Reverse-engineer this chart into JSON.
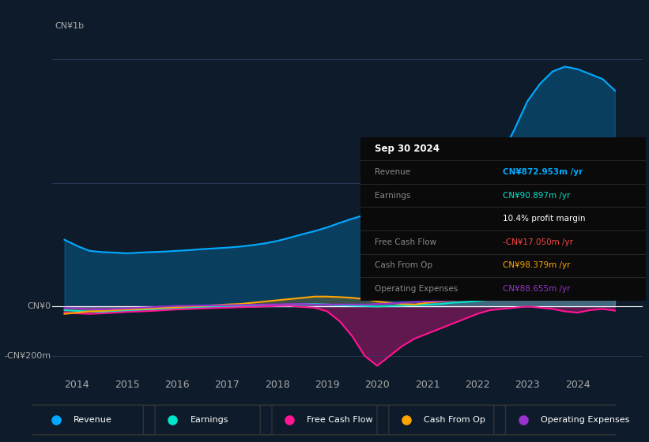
{
  "bg_color": "#0d1b2a",
  "plot_bg_color": "#0d1b2a",
  "grid_color": "#1e3050",
  "title_label": "CN¥1b",
  "y_labels": [
    "CN¥1b",
    "CN¥0",
    "-CN¥200m"
  ],
  "ylim": [
    -280,
    1150
  ],
  "xlim": [
    2013.5,
    2025.3
  ],
  "xticks": [
    2014,
    2015,
    2016,
    2017,
    2018,
    2019,
    2020,
    2021,
    2022,
    2023,
    2024
  ],
  "revenue_color": "#00aaff",
  "earnings_color": "#00e5cc",
  "fcf_color": "#ff1493",
  "cashfromop_color": "#ffa500",
  "opex_color": "#9932cc",
  "info_box": {
    "date": "Sep 30 2024",
    "revenue_val": "CN¥872.953m",
    "earnings_val": "CN¥90.897m",
    "profit_margin": "10.4% profit margin",
    "fcf_val": "-CN¥17.050m",
    "cashfromop_val": "CN¥98.379m",
    "opex_val": "CN¥88.655m"
  },
  "legend": [
    {
      "label": "Revenue",
      "color": "#00aaff"
    },
    {
      "label": "Earnings",
      "color": "#00e5cc"
    },
    {
      "label": "Free Cash Flow",
      "color": "#ff1493"
    },
    {
      "label": "Cash From Op",
      "color": "#ffa500"
    },
    {
      "label": "Operating Expenses",
      "color": "#9932cc"
    }
  ],
  "years": [
    2013.75,
    2014.0,
    2014.25,
    2014.5,
    2014.75,
    2015.0,
    2015.25,
    2015.5,
    2015.75,
    2016.0,
    2016.25,
    2016.5,
    2016.75,
    2017.0,
    2017.25,
    2017.5,
    2017.75,
    2018.0,
    2018.25,
    2018.5,
    2018.75,
    2019.0,
    2019.25,
    2019.5,
    2019.75,
    2020.0,
    2020.25,
    2020.5,
    2020.75,
    2021.0,
    2021.25,
    2021.5,
    2021.75,
    2022.0,
    2022.25,
    2022.5,
    2022.75,
    2023.0,
    2023.25,
    2023.5,
    2023.75,
    2024.0,
    2024.25,
    2024.5,
    2024.75
  ],
  "revenue": [
    270,
    245,
    225,
    220,
    218,
    215,
    218,
    220,
    222,
    225,
    228,
    232,
    235,
    238,
    242,
    248,
    255,
    265,
    278,
    292,
    305,
    320,
    338,
    355,
    370,
    380,
    388,
    392,
    395,
    400,
    415,
    432,
    448,
    465,
    520,
    620,
    720,
    830,
    900,
    950,
    970,
    960,
    940,
    920,
    873
  ],
  "earnings": [
    -15,
    -18,
    -20,
    -22,
    -20,
    -18,
    -15,
    -12,
    -10,
    -8,
    -5,
    -3,
    -2,
    0,
    2,
    3,
    5,
    7,
    8,
    10,
    10,
    8,
    5,
    3,
    2,
    0,
    2,
    3,
    5,
    8,
    10,
    15,
    18,
    22,
    28,
    35,
    45,
    55,
    65,
    72,
    75,
    78,
    80,
    85,
    91
  ],
  "fcf": [
    -25,
    -28,
    -30,
    -28,
    -25,
    -22,
    -20,
    -18,
    -15,
    -12,
    -10,
    -8,
    -6,
    -5,
    -3,
    -2,
    0,
    2,
    3,
    -2,
    -5,
    -20,
    -60,
    -120,
    -200,
    -240,
    -200,
    -160,
    -130,
    -110,
    -90,
    -70,
    -50,
    -30,
    -15,
    -10,
    -5,
    0,
    -5,
    -10,
    -20,
    -25,
    -15,
    -10,
    -17
  ],
  "cashfromop": [
    -30,
    -25,
    -20,
    -18,
    -15,
    -12,
    -10,
    -8,
    -5,
    -3,
    0,
    2,
    5,
    8,
    10,
    15,
    20,
    25,
    30,
    35,
    40,
    40,
    38,
    35,
    30,
    20,
    15,
    10,
    8,
    15,
    20,
    25,
    30,
    35,
    50,
    65,
    75,
    80,
    95,
    110,
    105,
    90,
    100,
    115,
    98
  ],
  "opex": [
    -5,
    -8,
    -10,
    -12,
    -10,
    -8,
    -5,
    -3,
    0,
    2,
    3,
    4,
    5,
    5,
    6,
    7,
    8,
    8,
    10,
    10,
    8,
    8,
    8,
    8,
    8,
    10,
    12,
    15,
    18,
    20,
    22,
    25,
    28,
    32,
    40,
    50,
    60,
    70,
    75,
    78,
    80,
    82,
    84,
    86,
    89
  ]
}
